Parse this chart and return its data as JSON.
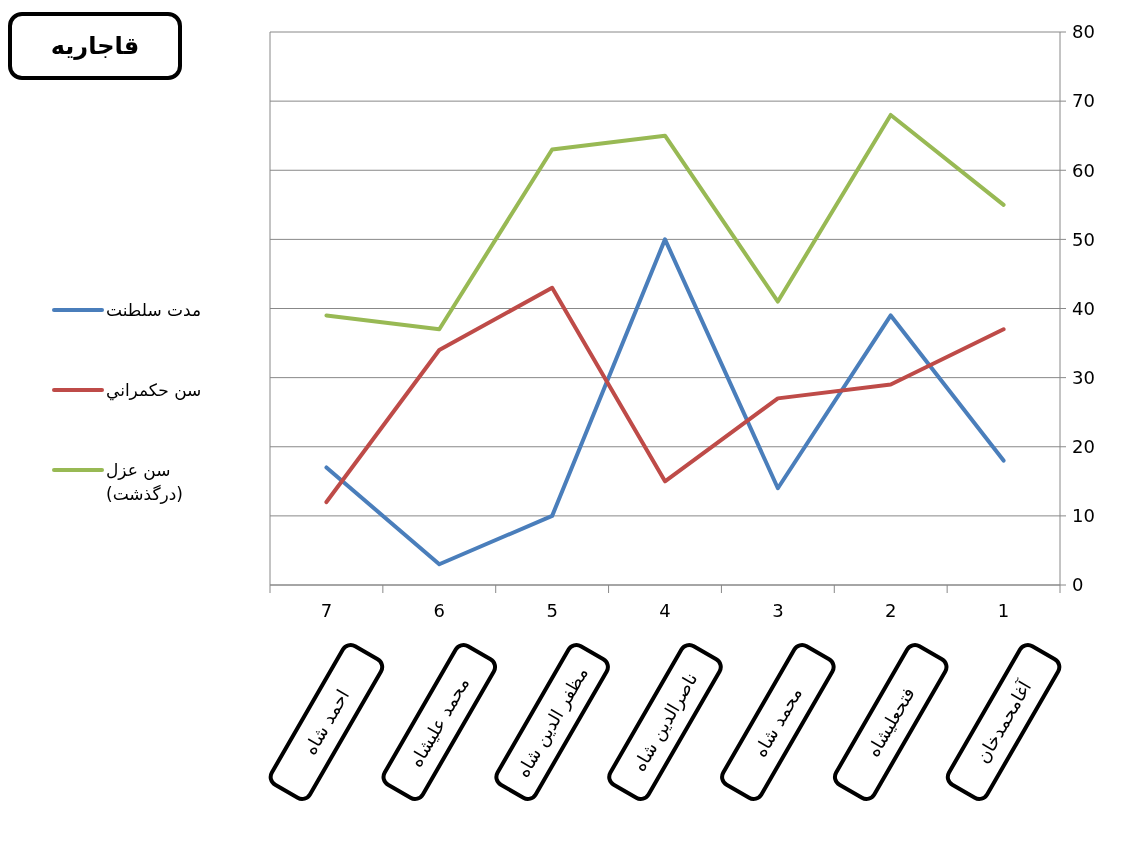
{
  "chart_data": {
    "type": "line",
    "title": "قاجاریه",
    "categories": [
      "7",
      "6",
      "5",
      "4",
      "3",
      "2",
      "1"
    ],
    "series": [
      {
        "name": "مدت سلطنت",
        "color": "#4a7ebb",
        "values": [
          17,
          3,
          10,
          50,
          14,
          39,
          18
        ]
      },
      {
        "name": "سن حکمراني",
        "color": "#be4b48",
        "values": [
          12,
          34,
          43,
          15,
          27,
          29,
          37
        ]
      },
      {
        "name": "سن عزل (درگذشت)",
        "color": "#98b954",
        "values": [
          39,
          37,
          63,
          65,
          41,
          68,
          55
        ]
      }
    ],
    "annotations": [
      "احمد شاه",
      "محمد عليشاه",
      "مظفر الدين شاه",
      "ناصرالدين شاه",
      "محمد شاه",
      "فتحعليشاه",
      "آغامحمدخان"
    ],
    "ylim": [
      0,
      80
    ],
    "yticks": [
      0,
      10,
      20,
      30,
      40,
      50,
      60,
      70,
      80
    ],
    "grid": "y",
    "legend": "left",
    "line_style": "solid",
    "marker": "none"
  }
}
